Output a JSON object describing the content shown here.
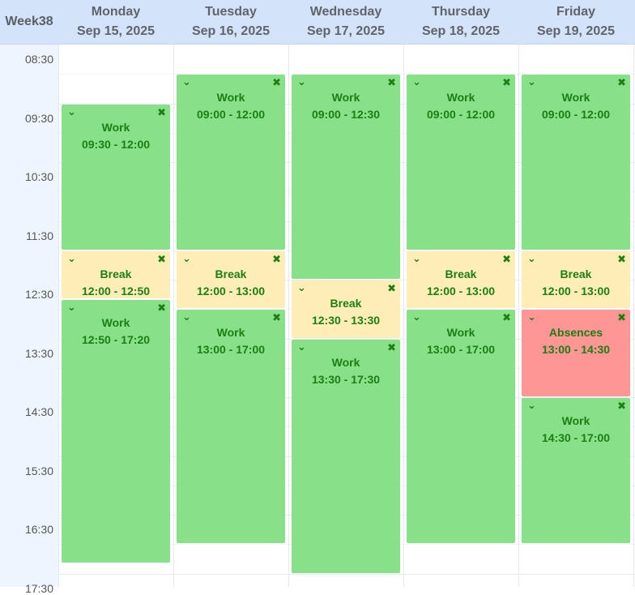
{
  "week_label": "Week38",
  "days": [
    {
      "name": "Monday",
      "date": "Sep 15, 2025"
    },
    {
      "name": "Tuesday",
      "date": "Sep 16, 2025"
    },
    {
      "name": "Wednesday",
      "date": "Sep 17, 2025"
    },
    {
      "name": "Thursday",
      "date": "Sep 18, 2025"
    },
    {
      "name": "Friday",
      "date": "Sep 19, 2025"
    }
  ],
  "time_labels": [
    "08:30",
    "09:30",
    "10:30",
    "11:30",
    "12:30",
    "13:30",
    "14:30",
    "15:30",
    "16:30",
    "17:30"
  ],
  "colors": {
    "work": "#88e088",
    "break": "#ffedb8",
    "absence": "#ff9696",
    "text": "#1b7f12"
  },
  "icons": {
    "expand": "chevron-down-icon",
    "delete": "close-icon"
  },
  "events": [
    {
      "day": 0,
      "type": "work",
      "title": "Work",
      "range": "09:30 - 12:00",
      "start": 9.5,
      "end": 12.0
    },
    {
      "day": 0,
      "type": "break",
      "title": "Break",
      "range": "12:00 - 12:50",
      "start": 12.0,
      "end": 12.8333
    },
    {
      "day": 0,
      "type": "work",
      "title": "Work",
      "range": "12:50 - 17:20",
      "start": 12.8333,
      "end": 17.3333
    },
    {
      "day": 1,
      "type": "work",
      "title": "Work",
      "range": "09:00 - 12:00",
      "start": 9.0,
      "end": 12.0
    },
    {
      "day": 1,
      "type": "break",
      "title": "Break",
      "range": "12:00 - 13:00",
      "start": 12.0,
      "end": 13.0
    },
    {
      "day": 1,
      "type": "work",
      "title": "Work",
      "range": "13:00 - 17:00",
      "start": 13.0,
      "end": 17.0
    },
    {
      "day": 2,
      "type": "work",
      "title": "Work",
      "range": "09:00 - 12:30",
      "start": 9.0,
      "end": 12.5
    },
    {
      "day": 2,
      "type": "break",
      "title": "Break",
      "range": "12:30 - 13:30",
      "start": 12.5,
      "end": 13.5
    },
    {
      "day": 2,
      "type": "work",
      "title": "Work",
      "range": "13:30 - 17:30",
      "start": 13.5,
      "end": 17.5
    },
    {
      "day": 3,
      "type": "work",
      "title": "Work",
      "range": "09:00 - 12:00",
      "start": 9.0,
      "end": 12.0
    },
    {
      "day": 3,
      "type": "break",
      "title": "Break",
      "range": "12:00 - 13:00",
      "start": 12.0,
      "end": 13.0
    },
    {
      "day": 3,
      "type": "work",
      "title": "Work",
      "range": "13:00 - 17:00",
      "start": 13.0,
      "end": 17.0
    },
    {
      "day": 4,
      "type": "work",
      "title": "Work",
      "range": "09:00 - 12:00",
      "start": 9.0,
      "end": 12.0
    },
    {
      "day": 4,
      "type": "break",
      "title": "Break",
      "range": "12:00 - 13:00",
      "start": 12.0,
      "end": 13.0
    },
    {
      "day": 4,
      "type": "absence",
      "title": "Absences",
      "range": "13:00 - 14:30",
      "start": 13.0,
      "end": 14.5
    },
    {
      "day": 4,
      "type": "work",
      "title": "Work",
      "range": "14:30 - 17:00",
      "start": 14.5,
      "end": 17.0
    }
  ]
}
